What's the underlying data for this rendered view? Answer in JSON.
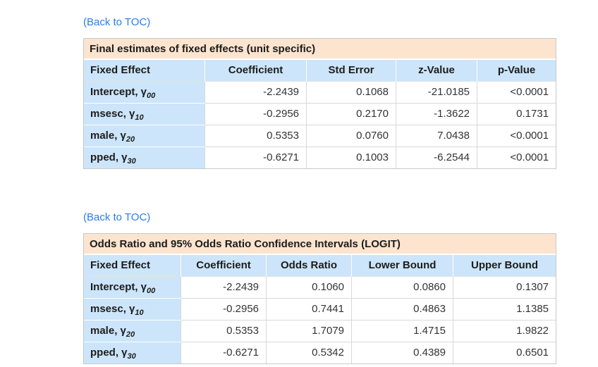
{
  "links": {
    "back_to_toc": "(Back to TOC)"
  },
  "colors": {
    "title_band_bg": "#fce4cf",
    "header_bg": "#cce5fa",
    "link_blue": "#2b7ce9",
    "cell_border": "#d9d9d9"
  },
  "tables": [
    {
      "title": "Final estimates of fixed effects (unit specific)",
      "columns": [
        "Fixed Effect",
        "Coefficient",
        "Std Error",
        "z-Value",
        "p-Value"
      ],
      "rows": [
        {
          "label": "Intercept, γ",
          "sub": "00",
          "values": [
            "-2.2439",
            "0.1068",
            "-21.0185",
            "<0.0001"
          ]
        },
        {
          "label": "msesc, γ",
          "sub": "10",
          "values": [
            "-0.2956",
            "0.2170",
            "-1.3622",
            "0.1731"
          ]
        },
        {
          "label": "male, γ",
          "sub": "20",
          "values": [
            "0.5353",
            "0.0760",
            "7.0438",
            "<0.0001"
          ]
        },
        {
          "label": "pped, γ",
          "sub": "30",
          "values": [
            "-0.6271",
            "0.1003",
            "-6.2544",
            "<0.0001"
          ]
        }
      ]
    },
    {
      "title": "Odds Ratio and 95% Odds Ratio Confidence Intervals (LOGIT)",
      "columns": [
        "Fixed Effect",
        "Coefficient",
        "Odds Ratio",
        "Lower Bound",
        "Upper Bound"
      ],
      "rows": [
        {
          "label": "Intercept, γ",
          "sub": "00",
          "values": [
            "-2.2439",
            "0.1060",
            "0.0860",
            "0.1307"
          ]
        },
        {
          "label": "msesc, γ",
          "sub": "10",
          "values": [
            "-0.2956",
            "0.7441",
            "0.4863",
            "1.1385"
          ]
        },
        {
          "label": "male, γ",
          "sub": "20",
          "values": [
            "0.5353",
            "1.7079",
            "1.4715",
            "1.9822"
          ]
        },
        {
          "label": "pped, γ",
          "sub": "30",
          "values": [
            "-0.6271",
            "0.5342",
            "0.4389",
            "0.6501"
          ]
        }
      ]
    }
  ]
}
